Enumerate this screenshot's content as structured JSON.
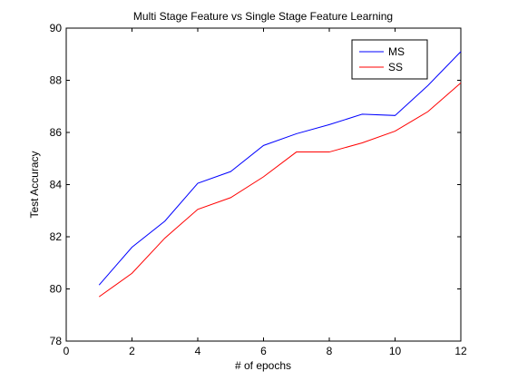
{
  "chart_data": {
    "type": "line",
    "title": "Multi Stage Feature vs Single Stage Feature Learning",
    "xlabel": "# of epochs",
    "ylabel": "Test Accuracy",
    "xlim": [
      0,
      12
    ],
    "ylim": [
      78,
      90
    ],
    "xticks": [
      0,
      2,
      4,
      6,
      8,
      10,
      12
    ],
    "yticks": [
      78,
      80,
      82,
      84,
      86,
      88,
      90
    ],
    "grid": false,
    "legend_position": "top-right",
    "x": [
      1,
      2,
      3,
      4,
      5,
      6,
      7,
      8,
      9,
      10,
      11,
      12
    ],
    "series": [
      {
        "name": "MS",
        "color": "#0000ff",
        "values": [
          80.15,
          81.6,
          82.6,
          84.05,
          84.5,
          85.5,
          85.95,
          86.3,
          86.7,
          86.65,
          87.8,
          89.1
        ]
      },
      {
        "name": "SS",
        "color": "#ff0000",
        "values": [
          79.7,
          80.6,
          81.95,
          83.05,
          83.5,
          84.3,
          85.25,
          85.25,
          85.6,
          86.05,
          86.8,
          87.9
        ]
      }
    ]
  }
}
